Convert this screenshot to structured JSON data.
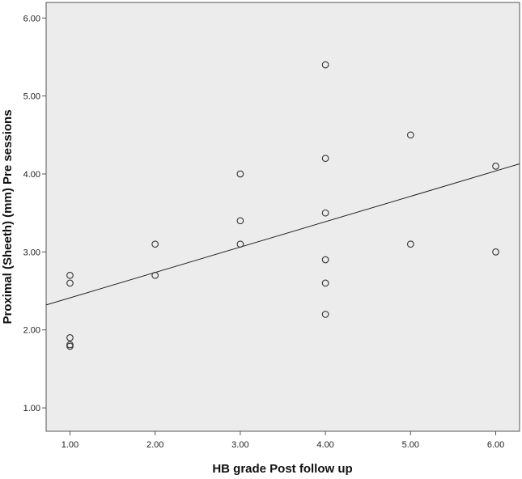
{
  "chart_data": {
    "type": "scatter",
    "xlabel": "HB grade Post follow up",
    "ylabel": "Proximal (Sheeth) (mm) Pre sessions",
    "xlim": [
      0.72,
      6.28
    ],
    "ylim": [
      0.7,
      6.2
    ],
    "x_ticks": [
      "1.00",
      "2.00",
      "3.00",
      "4.00",
      "5.00",
      "6.00"
    ],
    "y_ticks": [
      "1.00",
      "2.00",
      "3.00",
      "4.00",
      "5.00",
      "6.00"
    ],
    "grid": false,
    "plot_background": "#ececec",
    "marker_color": "#333333",
    "fit_line": {
      "x": [
        0.72,
        6.28
      ],
      "y": [
        2.32,
        4.13
      ]
    },
    "points": [
      {
        "x": 1,
        "y": 2.7
      },
      {
        "x": 1,
        "y": 2.6
      },
      {
        "x": 1,
        "y": 1.9
      },
      {
        "x": 1,
        "y": 1.81
      },
      {
        "x": 1,
        "y": 1.79
      },
      {
        "x": 2,
        "y": 3.1
      },
      {
        "x": 2,
        "y": 2.7
      },
      {
        "x": 3,
        "y": 4.0
      },
      {
        "x": 3,
        "y": 3.4
      },
      {
        "x": 3,
        "y": 3.1
      },
      {
        "x": 4,
        "y": 5.4
      },
      {
        "x": 4,
        "y": 4.2
      },
      {
        "x": 4,
        "y": 3.5
      },
      {
        "x": 4,
        "y": 2.9
      },
      {
        "x": 4,
        "y": 2.6
      },
      {
        "x": 4,
        "y": 2.2
      },
      {
        "x": 5,
        "y": 4.5
      },
      {
        "x": 5,
        "y": 3.1
      },
      {
        "x": 6,
        "y": 4.1
      },
      {
        "x": 6,
        "y": 3.0
      }
    ]
  }
}
